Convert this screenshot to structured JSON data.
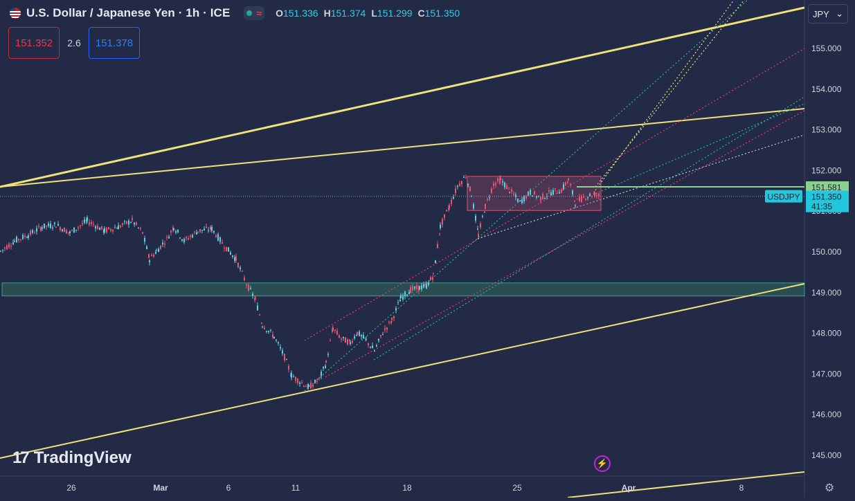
{
  "header": {
    "title": "U.S. Dollar / Japanese Yen · 1h · ICE",
    "ohlc": [
      {
        "k": "O",
        "v": "151.336"
      },
      {
        "k": "H",
        "v": "151.374"
      },
      {
        "k": "L",
        "v": "151.299"
      },
      {
        "k": "C",
        "v": "151.350"
      }
    ]
  },
  "trade": {
    "sell_price": "151.352",
    "spread": "2.6",
    "buy_price": "151.378"
  },
  "currency_selector": {
    "value": "JPY"
  },
  "brand": {
    "name": "TradingView"
  },
  "colors": {
    "background": "#232a45",
    "up": "#26a69a",
    "down": "#ef5370",
    "accent": "#22c7dd",
    "trendline": "#f0e27a"
  },
  "chart_data": {
    "type": "candlestick",
    "symbol": "USDJPY",
    "ylim": [
      144.5,
      156.3
    ],
    "y_ticks": [
      "145.000",
      "146.000",
      "147.000",
      "148.000",
      "149.000",
      "150.000",
      "151.000",
      "152.000",
      "153.000",
      "154.000",
      "155.000"
    ],
    "x_ticks": [
      "26",
      "Mar",
      "6",
      "11",
      "18",
      "25",
      "Apr",
      "8"
    ],
    "price_labels": [
      {
        "text": "151.581",
        "value": 151.581,
        "kind": "level"
      },
      {
        "text": "151.350",
        "value": 151.35,
        "kind": "last"
      }
    ],
    "countdown": "41:35",
    "symbol_tag": "USDJPY",
    "price_path": [
      [
        0,
        150.0
      ],
      [
        20,
        150.25
      ],
      [
        40,
        150.4
      ],
      [
        60,
        150.6
      ],
      [
        80,
        150.65
      ],
      [
        100,
        150.45
      ],
      [
        125,
        150.75
      ],
      [
        150,
        150.5
      ],
      [
        170,
        150.6
      ],
      [
        190,
        150.75
      ],
      [
        205,
        150.45
      ],
      [
        215,
        149.8
      ],
      [
        225,
        150.0
      ],
      [
        240,
        150.3
      ],
      [
        250,
        150.6
      ],
      [
        265,
        150.25
      ],
      [
        285,
        150.5
      ],
      [
        305,
        150.55
      ],
      [
        320,
        150.2
      ],
      [
        340,
        149.8
      ],
      [
        355,
        149.2
      ],
      [
        368,
        148.8
      ],
      [
        378,
        148.2
      ],
      [
        395,
        147.9
      ],
      [
        410,
        147.4
      ],
      [
        420,
        146.95
      ],
      [
        432,
        146.8
      ],
      [
        445,
        146.65
      ],
      [
        460,
        146.85
      ],
      [
        470,
        147.25
      ],
      [
        480,
        148.1
      ],
      [
        492,
        147.85
      ],
      [
        505,
        147.75
      ],
      [
        515,
        148.0
      ],
      [
        528,
        147.8
      ],
      [
        540,
        147.55
      ],
      [
        552,
        148.0
      ],
      [
        565,
        148.3
      ],
      [
        578,
        148.85
      ],
      [
        592,
        149.05
      ],
      [
        605,
        149.1
      ],
      [
        615,
        149.15
      ],
      [
        625,
        149.4
      ],
      [
        635,
        150.6
      ],
      [
        648,
        151.1
      ],
      [
        660,
        151.6
      ],
      [
        672,
        151.85
      ],
      [
        680,
        151.4
      ],
      [
        690,
        150.4
      ],
      [
        700,
        151.1
      ],
      [
        712,
        151.65
      ],
      [
        722,
        151.75
      ],
      [
        735,
        151.5
      ],
      [
        750,
        151.2
      ],
      [
        765,
        151.45
      ],
      [
        780,
        151.3
      ],
      [
        795,
        151.45
      ],
      [
        810,
        151.5
      ],
      [
        820,
        151.75
      ],
      [
        830,
        151.2
      ],
      [
        845,
        151.35
      ],
      [
        858,
        151.4
      ],
      [
        868,
        151.35
      ]
    ],
    "range_box": {
      "x0": 675,
      "x1": 868,
      "y_top": 151.84,
      "y_bottom": 151.0
    },
    "support_zone": {
      "y_top": 149.22,
      "y_bottom": 148.9
    }
  }
}
